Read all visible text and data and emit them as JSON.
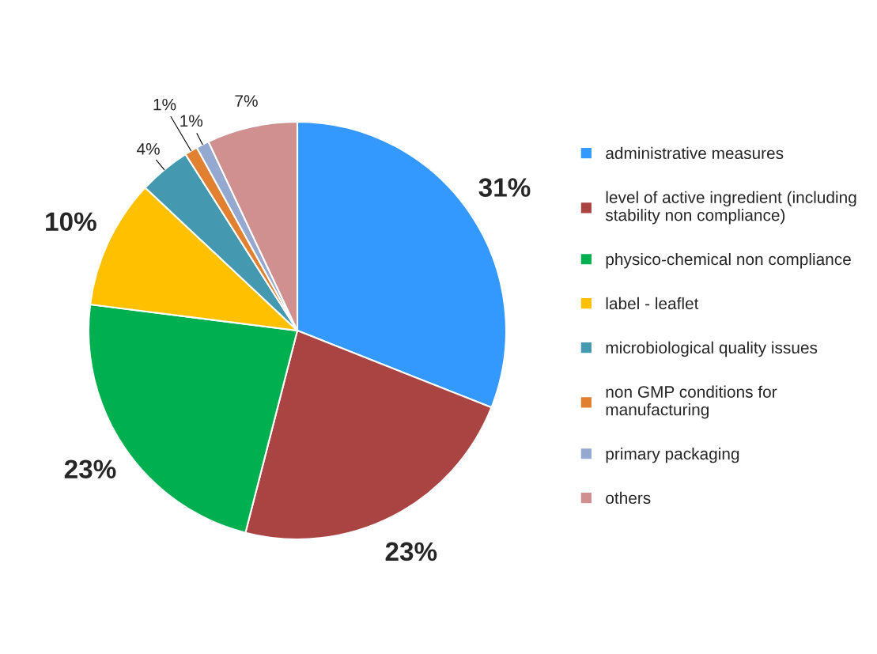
{
  "chart_data": {
    "type": "pie",
    "categories": [
      "administrative measures",
      "level of active ingredient (including\nstability non compliance)",
      "physico-chemical non compliance",
      "label - leaflet",
      "microbiological quality issues",
      "non GMP conditions for\nmanufacturing",
      "primary packaging",
      "others"
    ],
    "values": [
      31,
      23,
      23,
      10,
      4,
      1,
      1,
      7
    ],
    "colors": [
      "#3399ff",
      "#a94442",
      "#00b050",
      "#ffc000",
      "#4499b0",
      "#e08030",
      "#94a8d0",
      "#d09090"
    ],
    "value_labels": [
      "31%",
      "23%",
      "23%",
      "10%",
      "4%",
      "1%",
      "1%",
      "7%"
    ],
    "legend": "right"
  }
}
